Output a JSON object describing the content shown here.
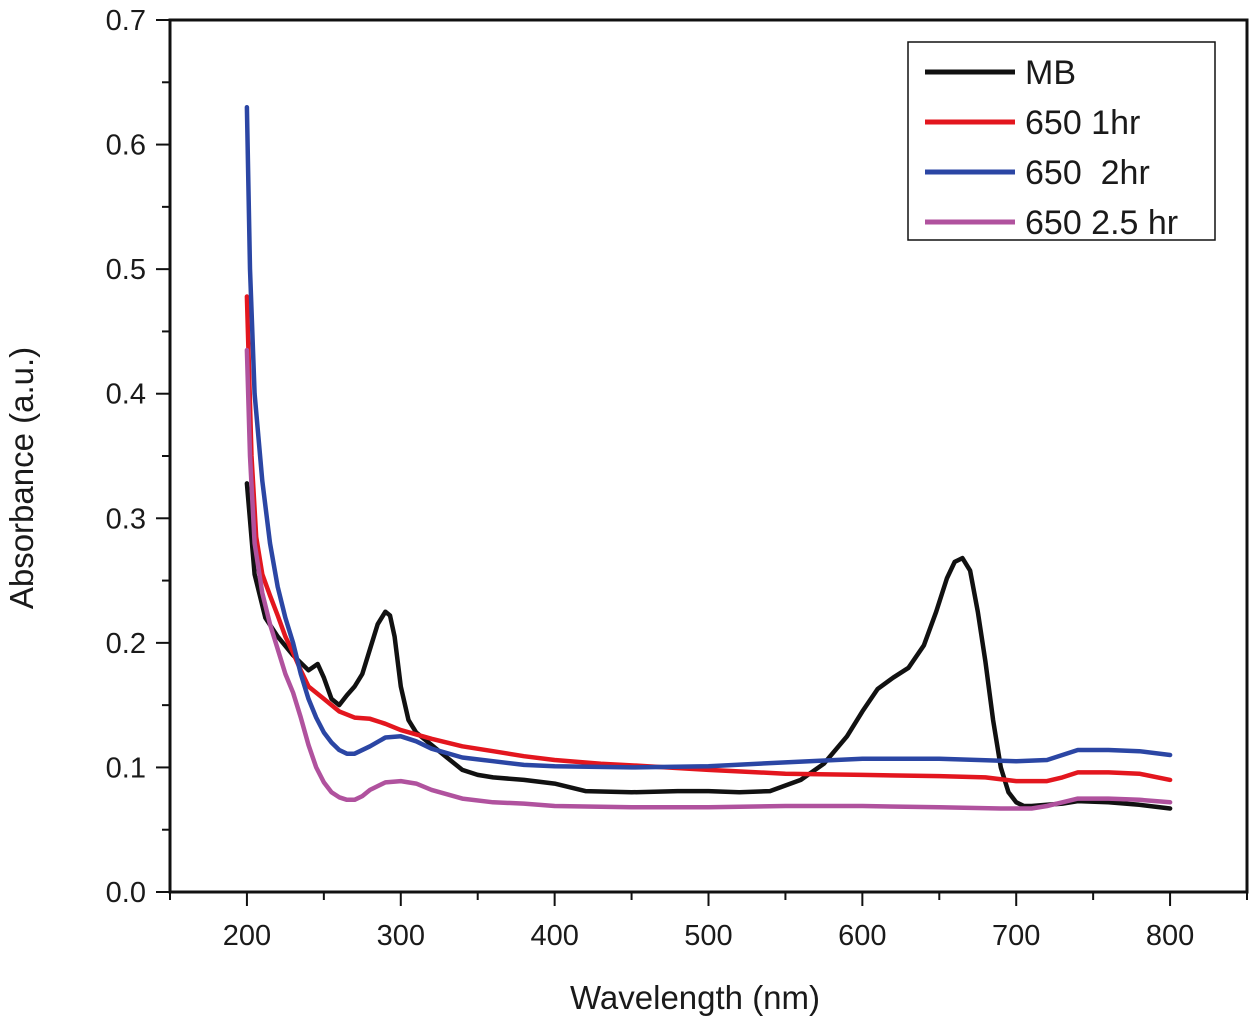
{
  "chart_data": {
    "type": "line",
    "title": "",
    "xlabel": "Wavelength (nm)",
    "ylabel": "Absorbance (a.u.)",
    "xlim": [
      150,
      850
    ],
    "ylim": [
      0.0,
      0.7
    ],
    "xticks": [
      "200",
      "300",
      "400",
      "500",
      "600",
      "700",
      "800"
    ],
    "yticks": [
      "0.0",
      "0.1",
      "0.2",
      "0.3",
      "0.4",
      "0.5",
      "0.6",
      "0.7"
    ],
    "grid": false,
    "legend_position": "top-right",
    "series": [
      {
        "name": "MB",
        "color": "#111111",
        "x": [
          200,
          205,
          212,
          220,
          230,
          240,
          246,
          250,
          255,
          260,
          265,
          270,
          275,
          280,
          285,
          290,
          293,
          296,
          300,
          305,
          310,
          320,
          330,
          340,
          350,
          360,
          380,
          400,
          420,
          450,
          480,
          500,
          520,
          540,
          560,
          575,
          590,
          600,
          610,
          620,
          630,
          640,
          648,
          655,
          660,
          665,
          670,
          675,
          680,
          685,
          690,
          695,
          700,
          705,
          710,
          720,
          730,
          740,
          760,
          780,
          800
        ],
        "y": [
          0.328,
          0.255,
          0.22,
          0.205,
          0.19,
          0.178,
          0.183,
          0.172,
          0.155,
          0.15,
          0.158,
          0.165,
          0.175,
          0.195,
          0.215,
          0.225,
          0.222,
          0.205,
          0.165,
          0.138,
          0.128,
          0.118,
          0.108,
          0.098,
          0.094,
          0.092,
          0.09,
          0.087,
          0.081,
          0.08,
          0.081,
          0.081,
          0.08,
          0.081,
          0.09,
          0.103,
          0.125,
          0.145,
          0.163,
          0.172,
          0.18,
          0.198,
          0.225,
          0.252,
          0.265,
          0.268,
          0.258,
          0.225,
          0.185,
          0.138,
          0.1,
          0.08,
          0.072,
          0.069,
          0.069,
          0.07,
          0.071,
          0.073,
          0.072,
          0.07,
          0.067
        ]
      },
      {
        "name": "650 1hr",
        "color": "#e3161e",
        "x": [
          200,
          203,
          206,
          210,
          215,
          220,
          225,
          230,
          235,
          240,
          250,
          260,
          270,
          280,
          290,
          300,
          320,
          340,
          360,
          380,
          400,
          430,
          460,
          500,
          550,
          600,
          650,
          680,
          700,
          720,
          730,
          740,
          760,
          780,
          800
        ],
        "y": [
          0.478,
          0.35,
          0.285,
          0.255,
          0.238,
          0.222,
          0.205,
          0.192,
          0.178,
          0.165,
          0.155,
          0.145,
          0.14,
          0.139,
          0.135,
          0.13,
          0.123,
          0.117,
          0.113,
          0.109,
          0.106,
          0.103,
          0.101,
          0.098,
          0.095,
          0.094,
          0.093,
          0.092,
          0.089,
          0.089,
          0.092,
          0.096,
          0.096,
          0.095,
          0.09
        ]
      },
      {
        "name": "650  2hr",
        "color": "#2b46a4",
        "x": [
          200,
          202,
          205,
          210,
          215,
          220,
          225,
          230,
          235,
          240,
          245,
          250,
          255,
          260,
          265,
          270,
          280,
          290,
          300,
          310,
          320,
          340,
          360,
          380,
          400,
          450,
          500,
          550,
          600,
          650,
          700,
          720,
          730,
          740,
          760,
          780,
          800
        ],
        "y": [
          0.63,
          0.5,
          0.4,
          0.33,
          0.28,
          0.245,
          0.22,
          0.2,
          0.175,
          0.155,
          0.14,
          0.128,
          0.12,
          0.114,
          0.111,
          0.111,
          0.117,
          0.124,
          0.125,
          0.121,
          0.115,
          0.108,
          0.105,
          0.102,
          0.101,
          0.1,
          0.101,
          0.104,
          0.107,
          0.107,
          0.105,
          0.106,
          0.11,
          0.114,
          0.114,
          0.113,
          0.11
        ]
      },
      {
        "name": "650 2.5 hr",
        "color": "#b0529e",
        "x": [
          200,
          202,
          205,
          210,
          215,
          220,
          225,
          230,
          235,
          240,
          245,
          250,
          255,
          260,
          265,
          270,
          275,
          280,
          290,
          300,
          310,
          320,
          340,
          360,
          380,
          400,
          450,
          500,
          550,
          600,
          650,
          690,
          710,
          720,
          730,
          740,
          760,
          780,
          800
        ],
        "y": [
          0.435,
          0.35,
          0.28,
          0.24,
          0.215,
          0.195,
          0.175,
          0.16,
          0.14,
          0.118,
          0.1,
          0.088,
          0.08,
          0.076,
          0.074,
          0.074,
          0.077,
          0.082,
          0.088,
          0.089,
          0.087,
          0.082,
          0.075,
          0.072,
          0.071,
          0.069,
          0.068,
          0.068,
          0.069,
          0.069,
          0.068,
          0.067,
          0.067,
          0.069,
          0.072,
          0.075,
          0.075,
          0.074,
          0.072
        ]
      }
    ]
  }
}
